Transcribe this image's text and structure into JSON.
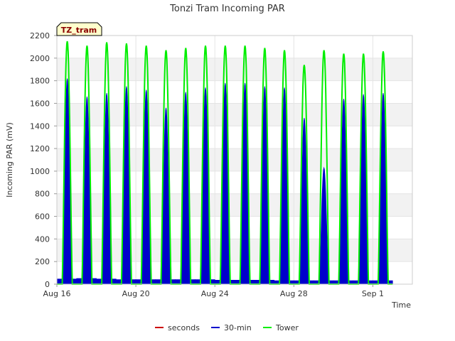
{
  "chart_data": {
    "type": "line",
    "title": "Tonzi Tram Incoming PAR",
    "badge": "TZ_tram",
    "xlabel": "Time",
    "ylabel": "Incoming PAR (mV)",
    "xlim": [
      0,
      18
    ],
    "ylim": [
      0,
      2200
    ],
    "yticks": [
      0,
      200,
      400,
      600,
      800,
      1000,
      1200,
      1400,
      1600,
      1800,
      2000,
      2200
    ],
    "xticks": [
      {
        "x": 0,
        "label": "Aug 16"
      },
      {
        "x": 4,
        "label": "Aug 20"
      },
      {
        "x": 8,
        "label": "Aug 24"
      },
      {
        "x": 12,
        "label": "Aug 28"
      },
      {
        "x": 16,
        "label": "Sep 1"
      }
    ],
    "grid": true,
    "legend_position": "bottom",
    "series": [
      {
        "name": "seconds",
        "color": "#cc0000",
        "values": []
      },
      {
        "name": "30-min",
        "color": "#0000cc",
        "daily_peaks": [
          1820,
          1660,
          1690,
          1750,
          1720,
          1560,
          1700,
          1740,
          1780,
          1780,
          1750,
          1740,
          1470,
          1030,
          1640,
          1680,
          1690
        ],
        "night_baseline": [
          45,
          50,
          45,
          40,
          40,
          40,
          40,
          40,
          35,
          35,
          35,
          30,
          30,
          30,
          30,
          30,
          30
        ]
      },
      {
        "name": "Tower",
        "color": "#00ee00",
        "daily_peaks": [
          2150,
          2110,
          2140,
          2130,
          2110,
          2070,
          2090,
          2110,
          2110,
          2110,
          2090,
          2070,
          1940,
          2070,
          2040,
          2040,
          2060
        ],
        "night_baseline": [
          0,
          0,
          0,
          0,
          0,
          0,
          0,
          0,
          0,
          0,
          0,
          0,
          0,
          0,
          0,
          0,
          0
        ]
      }
    ]
  }
}
